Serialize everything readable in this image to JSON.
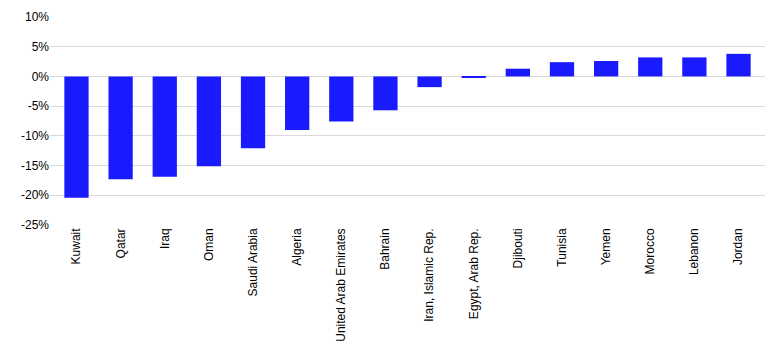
{
  "chart_data": {
    "type": "bar",
    "categories": [
      "Kuwait",
      "Qatar",
      "Iraq",
      "Oman",
      "Saudi Arabia",
      "Algeria",
      "United Arab Emirates",
      "Bahrain",
      "Iran, Islamic Rep.",
      "Egypt, Arab Rep.",
      "Djibouti",
      "Tunisia",
      "Yemen",
      "Morocco",
      "Lebanon",
      "Jordan"
    ],
    "values": [
      -20.4,
      -17.3,
      -16.9,
      -15.1,
      -12.1,
      -9.0,
      -7.6,
      -5.7,
      -1.8,
      -0.2,
      1.3,
      2.4,
      2.6,
      3.2,
      3.2,
      3.8
    ],
    "color": "#1a1aff",
    "ylim": [
      -25,
      10
    ],
    "yticks": [
      {
        "value": 10,
        "label": "10%"
      },
      {
        "value": 5,
        "label": "5%"
      },
      {
        "value": 0,
        "label": "0%"
      },
      {
        "value": -5,
        "label": "-5%"
      },
      {
        "value": -10,
        "label": "-10%"
      },
      {
        "value": -15,
        "label": "-15%"
      },
      {
        "value": -20,
        "label": "-20%"
      },
      {
        "value": -25,
        "label": "-25%"
      }
    ],
    "grid": true
  }
}
